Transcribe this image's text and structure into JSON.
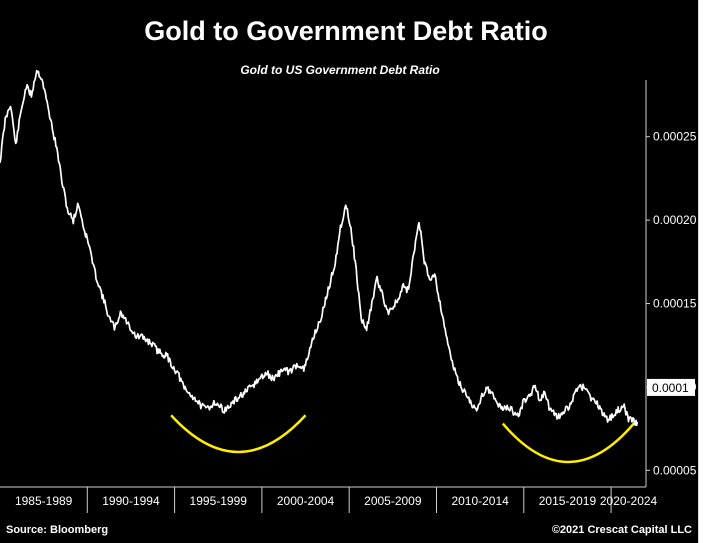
{
  "chart_data": {
    "type": "line",
    "title": "Gold to Government Debt Ratio",
    "subtitle": "Gold to US Government Debt Ratio",
    "source": "Source: Bloomberg",
    "credit": "©2021 Crescat Capital LLC",
    "x_categories": [
      "1985-1989",
      "1990-1994",
      "1995-1999",
      "2000-2004",
      "2005-2009",
      "2010-2014",
      "2015-2019",
      "2020-2024"
    ],
    "y_ticks": [
      "0.00005",
      "0.00010",
      "0.00015",
      "0.00020",
      "0.00025"
    ],
    "y_tick_values": [
      5e-05,
      0.0001,
      0.00015,
      0.0002,
      0.00025
    ],
    "ylim": [
      4e-05,
      0.00029
    ],
    "xlim": [
      1985.0,
      2022.0
    ],
    "last_value_label": "0.0001",
    "last_value": 0.0001,
    "series": [
      {
        "x": [
          1985.0,
          1985.3,
          1985.6,
          1985.9,
          1986.2,
          1986.5,
          1986.8,
          1987.1,
          1987.4,
          1987.7,
          1988.0,
          1988.3,
          1988.6,
          1988.9,
          1989.2,
          1989.5,
          1989.8,
          1990.1,
          1990.4,
          1990.7,
          1991.0,
          1991.3,
          1991.6,
          1991.9,
          1992.2,
          1992.5,
          1992.8,
          1993.1,
          1993.4,
          1993.7,
          1994.0,
          1994.3,
          1994.6,
          1994.9,
          1995.2,
          1995.5,
          1995.8,
          1996.1,
          1996.4,
          1996.7,
          1997.0,
          1997.3,
          1997.6,
          1997.9,
          1998.2,
          1998.5,
          1998.8,
          1999.1,
          1999.4,
          1999.7,
          2000.0,
          2000.3,
          2000.6,
          2000.9,
          2001.2,
          2001.5,
          2001.8,
          2002.1,
          2002.4,
          2002.7,
          2003.0,
          2003.3,
          2003.6,
          2003.9,
          2004.2,
          2004.5,
          2004.8,
          2005.1,
          2005.4,
          2005.7,
          2006.0,
          2006.3,
          2006.6,
          2006.9,
          2007.2,
          2007.5,
          2007.8,
          2008.1,
          2008.4,
          2008.7,
          2009.0,
          2009.3,
          2009.6,
          2009.9,
          2010.2,
          2010.5,
          2010.8,
          2011.1,
          2011.4,
          2011.7,
          2012.0,
          2012.3,
          2012.6,
          2012.9,
          2013.2,
          2013.5,
          2013.8,
          2014.1,
          2014.4,
          2014.7,
          2015.0,
          2015.3,
          2015.6,
          2015.9,
          2016.2,
          2016.5,
          2016.8,
          2017.1,
          2017.4,
          2017.7,
          2018.0,
          2018.3,
          2018.6,
          2018.9,
          2019.2,
          2019.5,
          2019.8,
          2020.1,
          2020.4,
          2020.7,
          2021.0,
          2021.3,
          2021.5
        ],
        "y": [
          0.000235,
          0.00026,
          0.00027,
          0.000245,
          0.000265,
          0.00028,
          0.000275,
          0.00029,
          0.000285,
          0.00027,
          0.000255,
          0.00024,
          0.00022,
          0.000205,
          0.0002,
          0.00021,
          0.000195,
          0.000185,
          0.00017,
          0.00016,
          0.00015,
          0.00014,
          0.000135,
          0.000145,
          0.00014,
          0.000135,
          0.00013,
          0.00013,
          0.000128,
          0.000126,
          0.000122,
          0.00012,
          0.000118,
          0.000112,
          0.000108,
          0.0001,
          9.6e-05,
          9.4e-05,
          9e-05,
          8.7e-05,
          8.8e-05,
          9.1e-05,
          8.8e-05,
          8.6e-05,
          8.9e-05,
          9.2e-05,
          9.5e-05,
          9.7e-05,
          0.0001,
          0.000103,
          0.000106,
          0.000108,
          0.000105,
          0.000107,
          0.000111,
          0.000109,
          0.000111,
          0.000114,
          0.00011,
          0.00012,
          0.000132,
          0.000138,
          0.00015,
          0.000162,
          0.000175,
          0.000195,
          0.00021,
          0.000195,
          0.00017,
          0.00014,
          0.000135,
          0.00015,
          0.000165,
          0.000155,
          0.000145,
          0.000148,
          0.000152,
          0.00016,
          0.000158,
          0.00018,
          0.0002,
          0.000175,
          0.000165,
          0.000168,
          0.00015,
          0.000135,
          0.000118,
          0.000108,
          0.0001,
          9.6e-05,
          9e-05,
          8.5e-05,
          9.5e-05,
          0.0001,
          9.5e-05,
          9e-05,
          8.7e-05,
          8.8e-05,
          8.5e-05,
          8.3e-05,
          9.2e-05,
          9.4e-05,
          0.0001,
          9.3e-05,
          9.6e-05,
          8.6e-05,
          8.3e-05,
          8.2e-05,
          8.6e-05,
          9e-05,
          9.8e-05,
          0.0001,
          0.0001,
          9.2e-05,
          9e-05,
          8.5e-05,
          8.1e-05,
          8.2e-05,
          8.6e-05,
          8.9e-05,
          8.1e-05,
          7.9e-05,
          7.9e-05
        ]
      }
    ],
    "annotations": [
      {
        "shape": "arc",
        "color": "#ffee00",
        "x_from": 1994.8,
        "x_to": 2002.5,
        "y_low": 6.1e-05,
        "y_high": 8.3e-05
      },
      {
        "shape": "arc",
        "color": "#ffee00",
        "x_from": 2013.8,
        "x_to": 2021.3,
        "y_low": 5.5e-05,
        "y_high": 7.8e-05
      }
    ],
    "colors": {
      "background": "#000000",
      "line": "#ffffff",
      "highlight": "#ffee00",
      "label_box": "#ffffff"
    },
    "grid": false,
    "legend": "none"
  }
}
